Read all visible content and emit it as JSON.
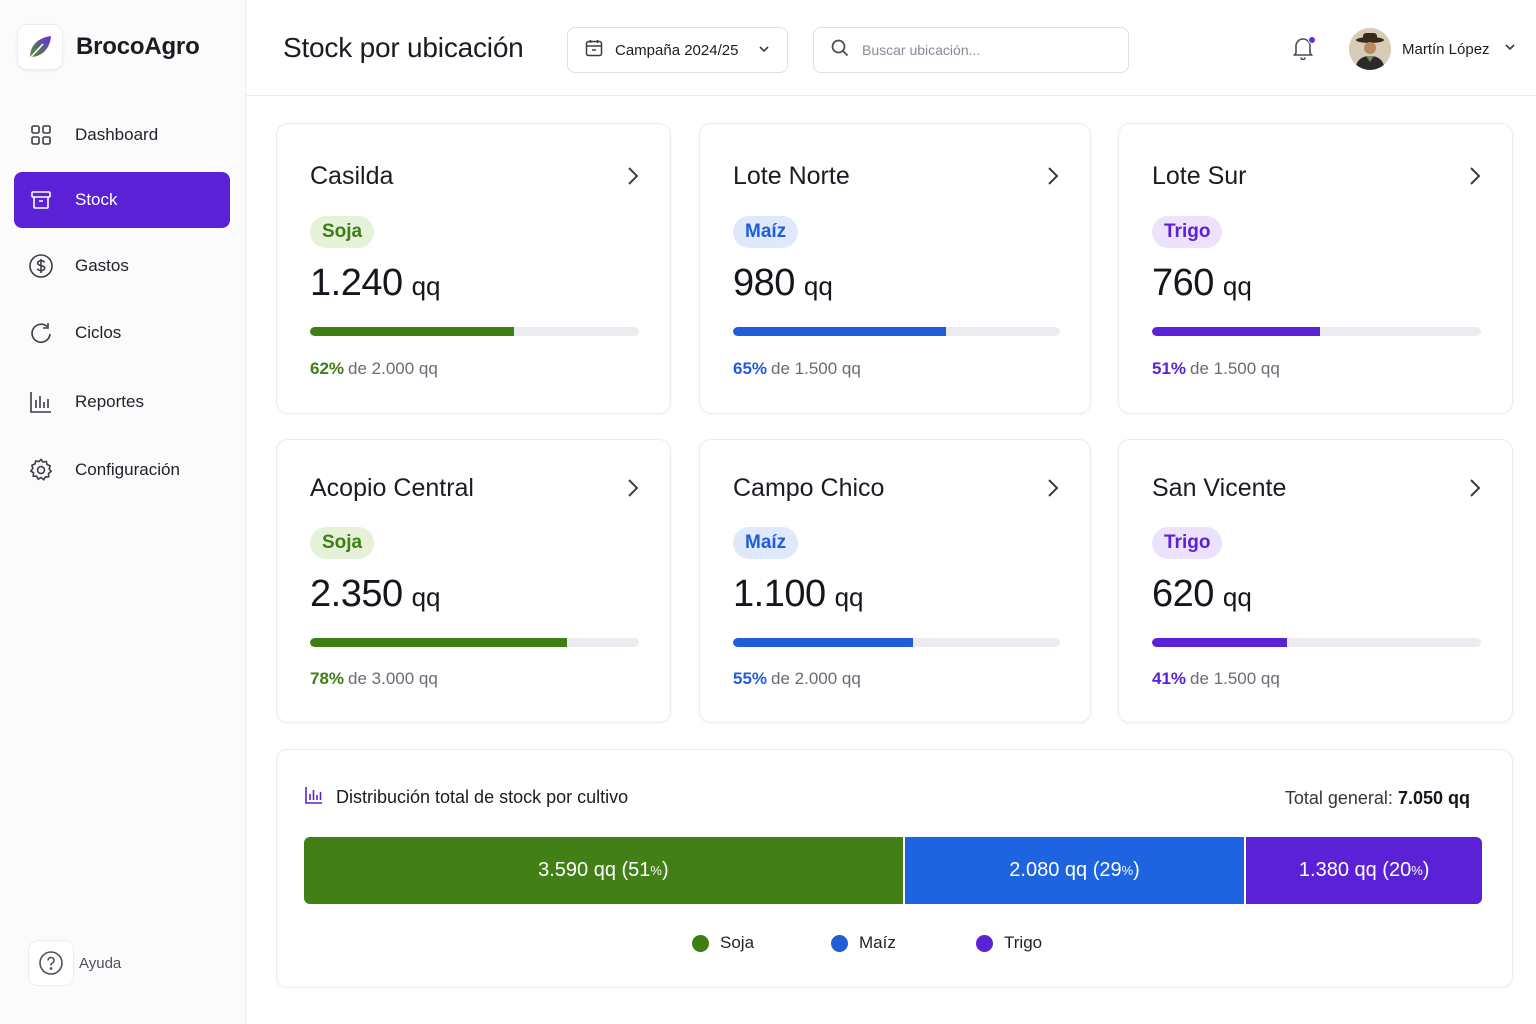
{
  "brand": {
    "name": "BrocoAgro"
  },
  "nav": [
    {
      "label": "Dashboard",
      "icon": "grid-icon",
      "active": false
    },
    {
      "label": "Stock",
      "icon": "box-icon",
      "active": true
    },
    {
      "label": "Gastos",
      "icon": "dollar-icon",
      "active": false
    },
    {
      "label": "Ciclos",
      "icon": "cycle-icon",
      "active": false
    },
    {
      "label": "Reportes",
      "icon": "bar-chart-icon",
      "active": false
    },
    {
      "label": "Configuración",
      "icon": "gear-icon",
      "active": false
    }
  ],
  "help": {
    "label": "Ayuda"
  },
  "header": {
    "title": "Stock por ubicación",
    "campaign": "Campaña 2024/25",
    "search_placeholder": "Buscar ubicación...",
    "user_name": "Martín López"
  },
  "colors": {
    "soja": "#3f7d15",
    "maiz": "#1f5ed8",
    "trigo": "#5b21d6"
  },
  "locations": [
    {
      "name": "Casilda",
      "crop": "Soja",
      "crop_key": "soja",
      "qty": "1.240",
      "unit": "qq",
      "fill": 0.62,
      "pct": "62%",
      "cap": "de 2.000 qq"
    },
    {
      "name": "Lote Norte",
      "crop": "Maíz",
      "crop_key": "maiz",
      "qty": "980",
      "unit": "qq",
      "fill": 0.65,
      "pct": "65%",
      "cap": "de 1.500 qq"
    },
    {
      "name": "Lote Sur",
      "crop": "Trigo",
      "crop_key": "trigo",
      "qty": "760",
      "unit": "qq",
      "fill": 0.51,
      "pct": "51%",
      "cap": "de 1.500 qq"
    },
    {
      "name": "Acopio Central",
      "crop": "Soja",
      "crop_key": "soja",
      "qty": "2.350",
      "unit": "qq",
      "fill": 0.78,
      "pct": "78%",
      "cap": "de 3.000 qq"
    },
    {
      "name": "Campo Chico",
      "crop": "Maíz",
      "crop_key": "maiz",
      "qty": "1.100",
      "unit": "qq",
      "fill": 0.55,
      "pct": "55%",
      "cap": "de 2.000 qq"
    },
    {
      "name": "San Vicente",
      "crop": "Trigo",
      "crop_key": "trigo",
      "qty": "620",
      "unit": "qq",
      "fill": 0.41,
      "pct": "41%",
      "cap": "de 1.500 qq"
    }
  ],
  "distribution": {
    "title": "Distribución total de stock por cultivo",
    "total_label": "Total general:",
    "total_value": "7.050 qq",
    "segments": [
      {
        "key": "soja",
        "label": "3.590 qq (51",
        "pct_sign": "%",
        "close": ")",
        "share": 0.51
      },
      {
        "key": "maiz",
        "label": "2.080 qq (29",
        "pct_sign": "%",
        "close": ")",
        "share": 0.29
      },
      {
        "key": "trigo",
        "label": "1.380 qq (20",
        "pct_sign": "%",
        "close": ")",
        "share": 0.2
      }
    ],
    "legend": [
      "Soja",
      "Maíz",
      "Trigo"
    ]
  }
}
